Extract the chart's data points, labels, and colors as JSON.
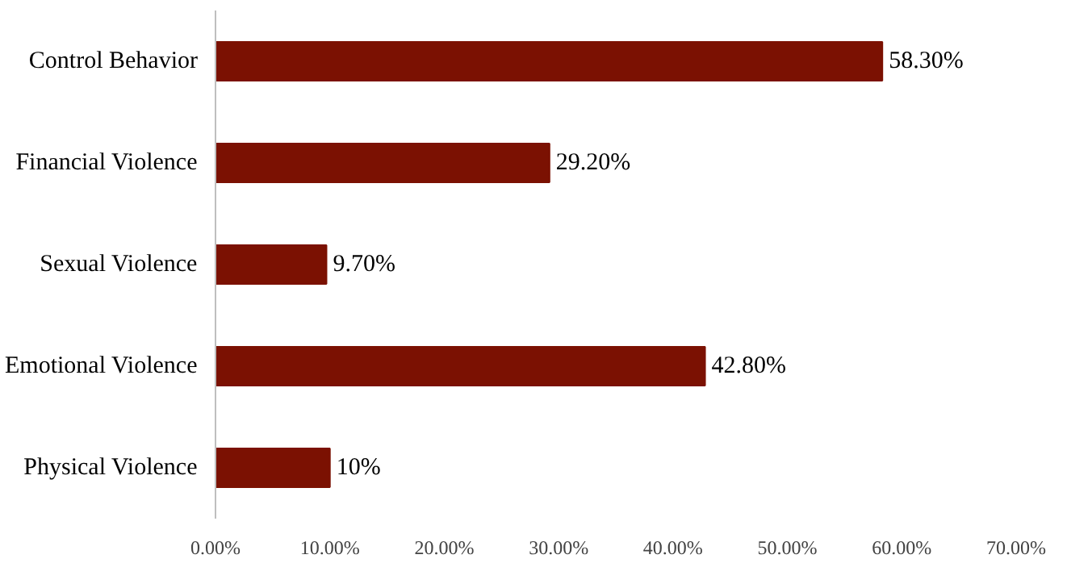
{
  "chart_data": {
    "type": "bar",
    "orientation": "horizontal",
    "categories": [
      "Control Behavior",
      "Financial Violence",
      "Sexual Violence",
      "Emotional Violence",
      "Physical Violence"
    ],
    "values": [
      58.3,
      29.2,
      9.7,
      42.8,
      10
    ],
    "color": "#7b1102",
    "value_labels": [
      "58.30%",
      "29.20%",
      "9.70%",
      "42.80%",
      "10%"
    ],
    "xlim": [
      0,
      70
    ],
    "xticks": [
      {
        "value": 0,
        "label": "0.00%"
      },
      {
        "value": 10,
        "label": "10.00%"
      },
      {
        "value": 20,
        "label": "20.00%"
      },
      {
        "value": 30,
        "label": "30.00%"
      },
      {
        "value": 40,
        "label": "40.00%"
      },
      {
        "value": 50,
        "label": "50.00%"
      },
      {
        "value": 60,
        "label": "60.00%"
      },
      {
        "value": 70,
        "label": "70.00%"
      }
    ]
  }
}
